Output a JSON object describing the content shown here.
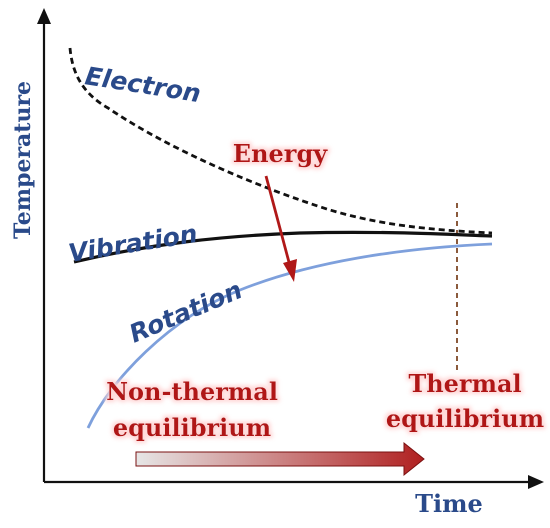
{
  "axes": {
    "y_label": "Temperature",
    "x_label": "Time"
  },
  "curves": {
    "electron": {
      "label": "Electron",
      "color": "#111111",
      "style": "dashed"
    },
    "vibration": {
      "label": "Vibration",
      "color": "#111111",
      "style": "solid"
    },
    "rotation": {
      "label": "Rotation",
      "color": "#7ea0dc",
      "style": "solid"
    }
  },
  "annotations": {
    "energy": "Energy",
    "non_thermal_line1": "Non-thermal",
    "non_thermal_line2": "equilibrium",
    "thermal_line1": "Thermal",
    "thermal_line2": "equilibrium"
  },
  "colors": {
    "axis_title": "#2a4a8a",
    "annotation": "#b01818",
    "equilibrium_marker": "#8b5a3c",
    "time_arrow_start": "#e6e6e6",
    "time_arrow_end": "#b02020"
  }
}
